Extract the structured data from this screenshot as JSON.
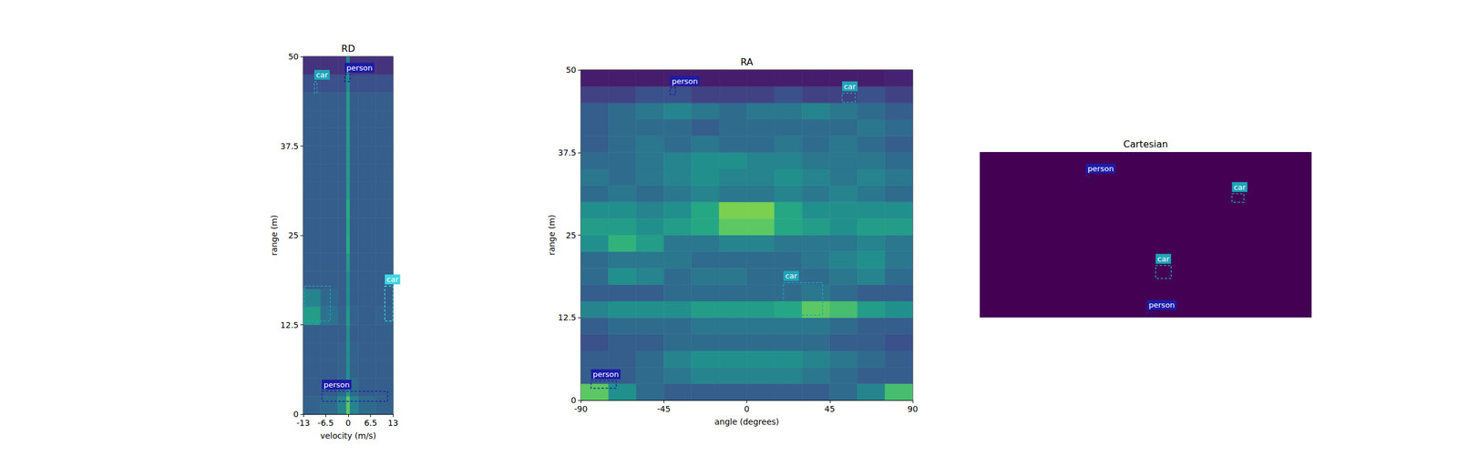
{
  "chart_data": [
    {
      "type": "heatmap",
      "title": "RD",
      "x_label": "velocity (m/s)",
      "y_label": "range (m)",
      "xlim": [
        -13,
        13
      ],
      "ylim": [
        0,
        50
      ],
      "xticks": [
        -13,
        -6.5,
        0,
        6.5,
        13
      ],
      "yticks": [
        0,
        12.5,
        25,
        37.5,
        50
      ],
      "value_range": [
        0,
        1
      ],
      "x_bins": [
        -13,
        -8,
        -3,
        -0.5,
        0.5,
        3,
        8,
        13
      ],
      "y_bins": [
        0,
        2.5,
        5,
        7.5,
        10,
        12.5,
        15,
        17.5,
        20,
        22.5,
        25,
        27.5,
        30,
        32.5,
        35,
        37.5,
        40,
        42.5,
        45,
        47.5,
        50
      ],
      "cells": [
        [
          0.32,
          0.35,
          0.45,
          0.75,
          0.45,
          0.35,
          0.32
        ],
        [
          0.3,
          0.3,
          0.35,
          0.55,
          0.35,
          0.3,
          0.3
        ],
        [
          0.3,
          0.3,
          0.32,
          0.5,
          0.32,
          0.3,
          0.3
        ],
        [
          0.3,
          0.3,
          0.32,
          0.5,
          0.32,
          0.3,
          0.3
        ],
        [
          0.3,
          0.3,
          0.3,
          0.5,
          0.3,
          0.3,
          0.3
        ],
        [
          0.55,
          0.38,
          0.32,
          0.55,
          0.32,
          0.3,
          0.32
        ],
        [
          0.45,
          0.34,
          0.3,
          0.5,
          0.3,
          0.3,
          0.3
        ],
        [
          0.3,
          0.3,
          0.3,
          0.5,
          0.3,
          0.3,
          0.3
        ],
        [
          0.3,
          0.3,
          0.3,
          0.55,
          0.3,
          0.3,
          0.3
        ],
        [
          0.3,
          0.3,
          0.3,
          0.62,
          0.3,
          0.3,
          0.3
        ],
        [
          0.3,
          0.3,
          0.3,
          0.6,
          0.3,
          0.3,
          0.3
        ],
        [
          0.3,
          0.3,
          0.3,
          0.62,
          0.3,
          0.3,
          0.3
        ],
        [
          0.3,
          0.3,
          0.3,
          0.55,
          0.3,
          0.3,
          0.3
        ],
        [
          0.3,
          0.3,
          0.3,
          0.55,
          0.3,
          0.3,
          0.3
        ],
        [
          0.3,
          0.3,
          0.3,
          0.55,
          0.3,
          0.3,
          0.3
        ],
        [
          0.3,
          0.3,
          0.3,
          0.55,
          0.3,
          0.3,
          0.3
        ],
        [
          0.3,
          0.3,
          0.3,
          0.55,
          0.3,
          0.3,
          0.3
        ],
        [
          0.3,
          0.3,
          0.3,
          0.55,
          0.3,
          0.3,
          0.3
        ],
        [
          0.25,
          0.25,
          0.25,
          0.5,
          0.25,
          0.25,
          0.25
        ],
        [
          0.15,
          0.15,
          0.15,
          0.45,
          0.15,
          0.15,
          0.15
        ]
      ],
      "boxes": [
        {
          "label": "car",
          "color": "#1fa5b8",
          "x": [
            -9.8,
            -9.0
          ],
          "y": [
            44.9,
            46.5
          ]
        },
        {
          "label": "person",
          "color": "#1c1ca8",
          "x": [
            -1.0,
            0.5
          ],
          "y": [
            46.5,
            47.5
          ]
        },
        {
          "label": null,
          "color": "#1fa5b8",
          "x": [
            -12.7,
            -5.2
          ],
          "y": [
            13.0,
            17.9
          ]
        },
        {
          "label": "car",
          "color": "#3fd6e3",
          "x": [
            10.6,
            13.0
          ],
          "y": [
            13.0,
            17.9
          ]
        },
        {
          "label": "person",
          "color": "#1c1ca8",
          "x": [
            -7.6,
            11.4
          ],
          "y": [
            1.8,
            3.2
          ]
        }
      ]
    },
    {
      "type": "heatmap",
      "title": "RA",
      "x_label": "angle (degrees)",
      "y_label": "range (m)",
      "xlim": [
        -90,
        90
      ],
      "ylim": [
        0,
        50
      ],
      "xticks": [
        -90,
        -45,
        0,
        45,
        90
      ],
      "yticks": [
        0,
        12.5,
        25,
        37.5,
        50
      ],
      "value_range": [
        0,
        1
      ],
      "x_bins": [
        -90,
        -75,
        -60,
        -45,
        -30,
        -15,
        0,
        15,
        30,
        45,
        60,
        75,
        90
      ],
      "y_bins": [
        0,
        2.5,
        5,
        7.5,
        10,
        12.5,
        15,
        17.5,
        20,
        22.5,
        25,
        27.5,
        30,
        32.5,
        35,
        37.5,
        40,
        42.5,
        45,
        47.5,
        50
      ],
      "cells": [
        [
          0.75,
          0.5,
          0.35,
          0.3,
          0.3,
          0.3,
          0.3,
          0.3,
          0.3,
          0.35,
          0.45,
          0.7
        ],
        [
          0.3,
          0.3,
          0.35,
          0.4,
          0.45,
          0.45,
          0.45,
          0.45,
          0.4,
          0.35,
          0.3,
          0.3
        ],
        [
          0.3,
          0.3,
          0.35,
          0.45,
          0.5,
          0.5,
          0.5,
          0.5,
          0.45,
          0.4,
          0.35,
          0.3
        ],
        [
          0.25,
          0.3,
          0.3,
          0.35,
          0.35,
          0.35,
          0.35,
          0.35,
          0.35,
          0.3,
          0.3,
          0.25
        ],
        [
          0.3,
          0.35,
          0.35,
          0.35,
          0.4,
          0.4,
          0.4,
          0.4,
          0.4,
          0.35,
          0.3,
          0.3
        ],
        [
          0.45,
          0.5,
          0.5,
          0.5,
          0.55,
          0.55,
          0.55,
          0.6,
          0.75,
          0.7,
          0.55,
          0.5
        ],
        [
          0.3,
          0.3,
          0.3,
          0.35,
          0.35,
          0.35,
          0.35,
          0.35,
          0.4,
          0.35,
          0.3,
          0.3
        ],
        [
          0.35,
          0.5,
          0.45,
          0.35,
          0.4,
          0.4,
          0.35,
          0.35,
          0.35,
          0.4,
          0.45,
          0.35
        ],
        [
          0.35,
          0.4,
          0.4,
          0.4,
          0.35,
          0.35,
          0.35,
          0.35,
          0.4,
          0.45,
          0.5,
          0.4
        ],
        [
          0.5,
          0.65,
          0.55,
          0.4,
          0.4,
          0.45,
          0.45,
          0.4,
          0.4,
          0.4,
          0.45,
          0.4
        ],
        [
          0.55,
          0.55,
          0.5,
          0.55,
          0.6,
          0.75,
          0.75,
          0.6,
          0.55,
          0.5,
          0.55,
          0.55
        ],
        [
          0.5,
          0.5,
          0.45,
          0.5,
          0.6,
          0.8,
          0.8,
          0.6,
          0.5,
          0.5,
          0.5,
          0.5
        ],
        [
          0.35,
          0.4,
          0.35,
          0.4,
          0.45,
          0.4,
          0.4,
          0.45,
          0.4,
          0.45,
          0.4,
          0.35
        ],
        [
          0.4,
          0.35,
          0.4,
          0.45,
          0.5,
          0.45,
          0.45,
          0.5,
          0.45,
          0.4,
          0.45,
          0.4
        ],
        [
          0.35,
          0.35,
          0.4,
          0.45,
          0.5,
          0.5,
          0.45,
          0.45,
          0.4,
          0.4,
          0.4,
          0.35
        ],
        [
          0.3,
          0.35,
          0.4,
          0.35,
          0.4,
          0.35,
          0.35,
          0.4,
          0.35,
          0.4,
          0.35,
          0.3
        ],
        [
          0.3,
          0.35,
          0.35,
          0.35,
          0.3,
          0.35,
          0.35,
          0.35,
          0.35,
          0.35,
          0.4,
          0.35
        ],
        [
          0.3,
          0.35,
          0.4,
          0.45,
          0.4,
          0.35,
          0.4,
          0.4,
          0.45,
          0.4,
          0.35,
          0.3
        ],
        [
          0.2,
          0.2,
          0.25,
          0.25,
          0.2,
          0.2,
          0.2,
          0.25,
          0.2,
          0.2,
          0.25,
          0.2
        ],
        [
          0.08,
          0.08,
          0.08,
          0.08,
          0.08,
          0.08,
          0.08,
          0.08,
          0.08,
          0.08,
          0.08,
          0.1
        ]
      ],
      "boxes": [
        {
          "label": "person",
          "color": "#1c1ca8",
          "x": [
            -41.6,
            -38.6
          ],
          "y": [
            46.3,
            47.3
          ]
        },
        {
          "label": "car",
          "color": "#1fa5b8",
          "x": [
            51.7,
            58.8
          ],
          "y": [
            45.1,
            46.5
          ]
        },
        {
          "label": "car",
          "color": "#1fa5b8",
          "x": [
            19.9,
            41.1
          ],
          "y": [
            12.9,
            17.8
          ]
        },
        {
          "label": "person",
          "color": "#1c1ca8",
          "x": [
            -84.5,
            -70.8
          ],
          "y": [
            1.8,
            2.9
          ]
        }
      ]
    },
    {
      "type": "heatmap",
      "title": "Cartesian",
      "tick_labels": false,
      "xlim": [
        -50,
        50
      ],
      "ylim": [
        0,
        50
      ],
      "value_range": [
        0,
        1
      ],
      "x_bins": [
        -50,
        50
      ],
      "y_bins": [
        0,
        50
      ],
      "cells": [
        [
          0
        ]
      ],
      "boxes": [
        {
          "label": "person",
          "color": "#1c1ca8",
          "x": [
            -18.0,
            -17.0
          ],
          "y": [
            42.5,
            43.0
          ]
        },
        {
          "label": "car",
          "color": "#1fa5b8",
          "x": [
            26.0,
            29.6
          ],
          "y": [
            34.8,
            37.4
          ]
        },
        {
          "label": "car",
          "color": "#1fa5b8",
          "x": [
            3.0,
            7.7
          ],
          "y": [
            11.8,
            15.7
          ]
        },
        {
          "label": "person",
          "color": "#1c1ca8",
          "x": [
            0.4,
            3.0
          ],
          "y": [
            0.3,
            1.7
          ]
        }
      ]
    }
  ]
}
